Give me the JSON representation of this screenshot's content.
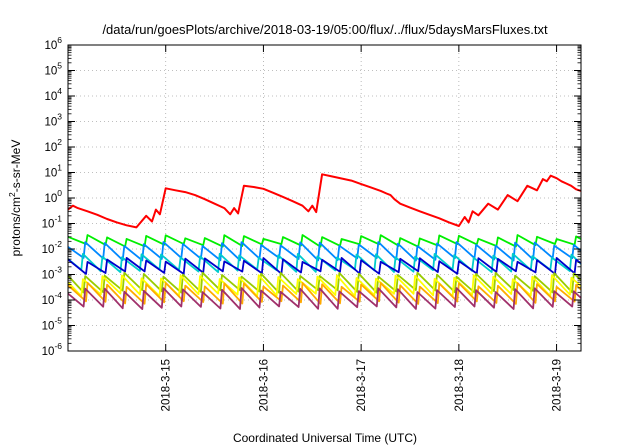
{
  "chart_data": {
    "type": "line",
    "title": "/data/run/goesPlots/archive/2018-03-19/05:00/flux/../flux/5daysMarsFluxes.txt",
    "xlabel": "Coordinated Universal Time (UTC)",
    "ylabel": {
      "prefix": "protons/cm",
      "sup": "2",
      "suffix": "-s-sr-MeV"
    },
    "y_scale": "log",
    "ylim": [
      1e-06,
      1000000.0
    ],
    "y_ticks": [
      {
        "value": 1e-06,
        "base": "10",
        "exp": "-6"
      },
      {
        "value": 1e-05,
        "base": "10",
        "exp": "-5"
      },
      {
        "value": 0.0001,
        "base": "10",
        "exp": "-4"
      },
      {
        "value": 0.001,
        "base": "10",
        "exp": "-3"
      },
      {
        "value": 0.01,
        "base": "10",
        "exp": "-2"
      },
      {
        "value": 0.1,
        "base": "10",
        "exp": "-1"
      },
      {
        "value": 1,
        "base": "10",
        "exp": "0"
      },
      {
        "value": 10,
        "base": "10",
        "exp": "1"
      },
      {
        "value": 100,
        "base": "10",
        "exp": "2"
      },
      {
        "value": 1000,
        "base": "10",
        "exp": "3"
      },
      {
        "value": 10000,
        "base": "10",
        "exp": "4"
      },
      {
        "value": 100000,
        "base": "10",
        "exp": "5"
      },
      {
        "value": 1000000,
        "base": "10",
        "exp": "6"
      }
    ],
    "xlim": [
      "2018-03-14T00:00",
      "2018-03-19T06:00"
    ],
    "x_ticks": [
      {
        "value": "2018-03-15T00:00",
        "label": "2018-3-15"
      },
      {
        "value": "2018-03-16T00:00",
        "label": "2018-3-16"
      },
      {
        "value": "2018-03-17T00:00",
        "label": "2018-3-17"
      },
      {
        "value": "2018-03-18T00:00",
        "label": "2018-3-18"
      },
      {
        "value": "2018-03-19T00:00",
        "label": "2018-3-19"
      }
    ],
    "grid": true,
    "legend": "none",
    "series": [
      {
        "color": "#ff0000",
        "x": [
          "2018-03-14T00:00",
          "2018-03-14T01:12",
          "2018-03-14T02:24",
          "2018-03-14T04:48",
          "2018-03-14T07:12",
          "2018-03-14T09:36",
          "2018-03-14T12:00",
          "2018-03-14T14:24",
          "2018-03-14T16:48",
          "2018-03-14T19:12",
          "2018-03-14T20:38",
          "2018-03-14T21:36",
          "2018-03-14T22:34",
          "2018-03-15T00:00",
          "2018-03-15T02:24",
          "2018-03-15T04:48",
          "2018-03-15T07:12",
          "2018-03-15T09:36",
          "2018-03-15T12:00",
          "2018-03-15T14:24",
          "2018-03-15T15:50",
          "2018-03-15T16:48",
          "2018-03-15T17:46",
          "2018-03-15T19:12",
          "2018-03-15T21:36",
          "2018-03-16T00:00",
          "2018-03-16T02:24",
          "2018-03-16T04:48",
          "2018-03-16T07:12",
          "2018-03-16T09:36",
          "2018-03-16T11:02",
          "2018-03-16T12:00",
          "2018-03-16T12:58",
          "2018-03-16T14:24",
          "2018-03-16T16:48",
          "2018-03-16T19:12",
          "2018-03-16T21:36",
          "2018-03-17T00:00",
          "2018-03-17T02:24",
          "2018-03-17T04:48",
          "2018-03-17T06:14",
          "2018-03-17T07:12",
          "2018-03-17T08:10",
          "2018-03-17T09:36",
          "2018-03-17T12:00",
          "2018-03-17T14:24",
          "2018-03-17T16:48",
          "2018-03-17T19:12",
          "2018-03-17T21:36",
          "2018-03-18T00:00",
          "2018-03-18T01:26",
          "2018-03-18T02:24",
          "2018-03-18T03:22",
          "2018-03-18T04:48",
          "2018-03-18T07:12",
          "2018-03-18T09:36",
          "2018-03-18T12:00",
          "2018-03-18T14:24",
          "2018-03-18T16:48",
          "2018-03-18T19:12",
          "2018-03-18T20:38",
          "2018-03-18T21:36",
          "2018-03-18T22:34",
          "2018-03-19T00:00",
          "2018-03-19T01:12",
          "2018-03-19T02:24",
          "2018-03-19T03:36",
          "2018-03-19T04:48",
          "2018-03-19T06:00"
        ],
        "y": [
          0.35,
          0.5,
          0.4,
          0.3,
          0.22,
          0.15,
          0.11,
          0.085,
          0.07,
          0.2,
          0.12,
          0.35,
          0.23,
          2.4,
          2.0,
          1.7,
          1.3,
          0.9,
          0.6,
          0.4,
          0.23,
          0.4,
          0.25,
          3.0,
          2.7,
          2.3,
          1.6,
          1.1,
          0.75,
          0.5,
          0.3,
          0.5,
          0.28,
          8.5,
          7.0,
          5.8,
          4.8,
          3.5,
          2.6,
          1.9,
          1.5,
          1.3,
          0.9,
          0.6,
          0.42,
          0.3,
          0.22,
          0.16,
          0.11,
          0.08,
          0.18,
          0.11,
          0.3,
          0.21,
          0.6,
          0.35,
          1.3,
          0.75,
          3.0,
          2.0,
          5.5,
          4.5,
          7.5,
          6.0,
          4.5,
          3.7,
          3.0,
          2.2,
          1.9
        ]
      }
    ],
    "bands": [
      {
        "color": "#00ee00",
        "high": 0.03,
        "low": 0.014
      },
      {
        "color": "#0088ff",
        "high": 0.016,
        "low": 0.004
      },
      {
        "color": "#00cccc",
        "high": 0.0055,
        "low": 0.0014
      },
      {
        "color": "#0000cc",
        "high": 0.0038,
        "low": 0.0012
      },
      {
        "color": "#99cc00",
        "high": 0.001,
        "low": 0.00022
      },
      {
        "color": "#ffff00",
        "high": 0.0008,
        "low": 0.00016
      },
      {
        "color": "#ffaa00",
        "high": 0.0004,
        "low": 8e-05
      },
      {
        "color": "#a0306a",
        "high": 0.00025,
        "low": 5e-05
      }
    ],
    "band_period_hours": 4.8
  }
}
